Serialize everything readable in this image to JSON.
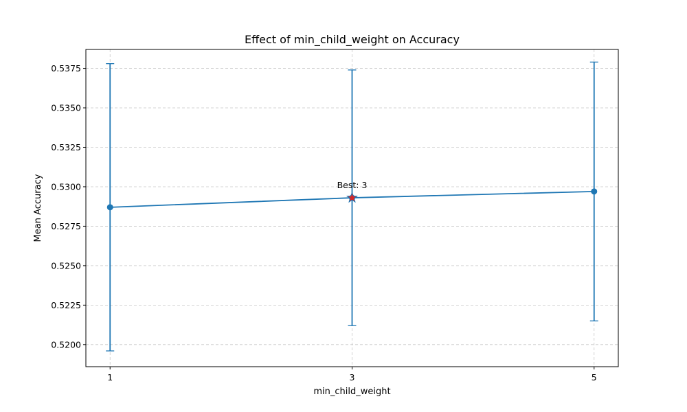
{
  "chart_data": {
    "type": "line",
    "title": "Effect of min_child_weight on Accuracy",
    "xlabel": "min_child_weight",
    "ylabel": "Mean Accuracy",
    "x": [
      1,
      3,
      5
    ],
    "x_tick_labels": [
      "1",
      "3",
      "5"
    ],
    "xlim": [
      0.8,
      5.2
    ],
    "ylim": [
      0.5186,
      0.5387
    ],
    "y_ticks": [
      0.52,
      0.5225,
      0.525,
      0.5275,
      0.53,
      0.5325,
      0.535,
      0.5375
    ],
    "y_tick_labels": [
      "0.5200",
      "0.5225",
      "0.5250",
      "0.5275",
      "0.5300",
      "0.5325",
      "0.5350",
      "0.5375"
    ],
    "grid": true,
    "series": [
      {
        "values": [
          0.5287,
          0.5293,
          0.5297
        ],
        "error": [
          0.0091,
          0.0081,
          0.0082
        ],
        "color": "#1f77b4"
      }
    ],
    "best": {
      "x": 3,
      "y": 0.5293,
      "label": "Best: 3",
      "marker": "star",
      "color": "#d62728"
    }
  }
}
